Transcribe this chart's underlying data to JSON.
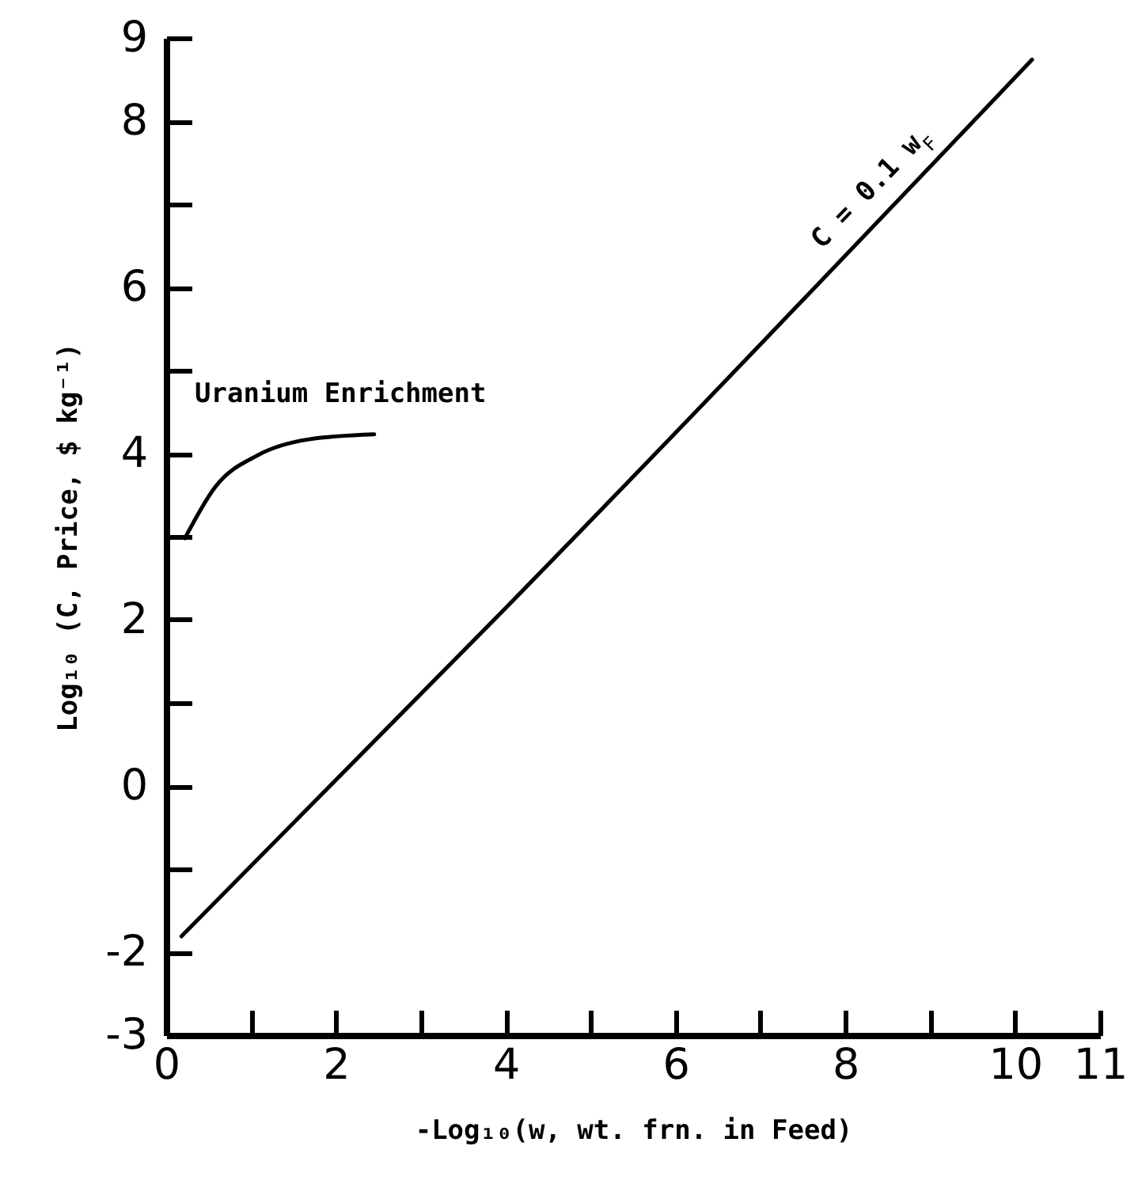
{
  "chart_data": {
    "type": "line",
    "xlabel": "-Log₁₀(w, wt. frn. in Feed)",
    "ylabel": "Log₁₀ (C, Price, $ kg⁻¹)",
    "series": [
      {
        "color": "#000000",
        "x": [
          0.18,
          3.96,
          10.2
        ],
        "values": [
          -1.81,
          2.1,
          8.74
        ]
      },
      {
        "color": "#000000",
        "x": [
          0.22,
          0.58,
          1.08,
          1.68,
          2.45
        ],
        "values": [
          2.98,
          3.6,
          3.98,
          4.17,
          4.23
        ]
      }
    ],
    "annotations": [
      "Uranium Enrichment",
      {
        "text": "C = 0.1 w$_{F}$",
        "x": 8.5,
        "y": 7.0
      }
    ],
    "xlim": [
      0,
      11
    ],
    "ylim": [
      -3,
      9
    ],
    "xticks": [
      0,
      {
        "value": 1,
        "label": null
      },
      2,
      {
        "value": 3,
        "label": null
      },
      4,
      {
        "value": 5,
        "label": null
      },
      6,
      {
        "value": 7,
        "label": null
      },
      8,
      {
        "value": 9,
        "label": null
      },
      10,
      11
    ],
    "yticks": [
      -3,
      -2,
      {
        "value": -1,
        "label": null
      },
      0,
      {
        "value": 1,
        "label": null
      },
      2,
      {
        "value": 3,
        "label": null
      },
      4,
      {
        "value": 5,
        "label": null
      },
      6,
      {
        "value": 7,
        "label": null
      },
      8,
      9
    ],
    "grid": false
  }
}
